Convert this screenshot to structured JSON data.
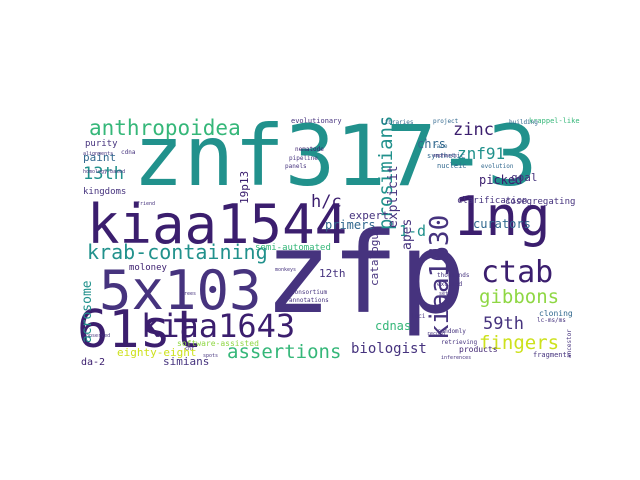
{
  "palette": {
    "dark_purple": "#3b1e6e",
    "indigo": "#46337e",
    "teal": "#21918c",
    "blue": "#31688e",
    "green": "#35b779",
    "lime": "#8fd744",
    "yellow": "#cde11d"
  },
  "words": [
    {
      "text": "zfp"
    },
    {
      "text": "znf317-3"
    },
    {
      "text": "kiaa1544"
    },
    {
      "text": "1ng"
    },
    {
      "text": "5x103"
    },
    {
      "text": "61st"
    },
    {
      "text": "kiaa1643"
    },
    {
      "text": "kiaa1630"
    },
    {
      "text": "ctab"
    },
    {
      "text": "krab-containing"
    },
    {
      "text": "anthropoidea"
    },
    {
      "text": "prosimians"
    },
    {
      "text": "assertions"
    },
    {
      "text": "gibbons"
    },
    {
      "text": "fingers"
    },
    {
      "text": "znf91"
    },
    {
      "text": "zinc"
    },
    {
      "text": "59th"
    },
    {
      "text": "13th"
    },
    {
      "text": "h/c"
    },
    {
      "text": "biologist"
    },
    {
      "text": "1-d"
    },
    {
      "text": "apes"
    },
    {
      "text": "explicit"
    },
    {
      "text": "acrosome"
    },
    {
      "text": "primers"
    },
    {
      "text": "curators"
    },
    {
      "text": "picked"
    },
    {
      "text": "chrs"
    },
    {
      "text": "cdnas"
    },
    {
      "text": "simians"
    },
    {
      "text": "expert"
    },
    {
      "text": "catalogue"
    },
    {
      "text": "goal"
    },
    {
      "text": "eighty-eight"
    },
    {
      "text": "paint"
    },
    {
      "text": "19p13"
    },
    {
      "text": "12th"
    },
    {
      "text": "da-2"
    },
    {
      "text": "semi-automated"
    },
    {
      "text": "purity"
    },
    {
      "text": "kingdoms"
    },
    {
      "text": "moloney"
    },
    {
      "text": "clarification"
    },
    {
      "text": "cosegregating"
    },
    {
      "text": "cloning"
    },
    {
      "text": "products"
    },
    {
      "text": "fragments"
    },
    {
      "text": "software-assisted"
    },
    {
      "text": "krappel-like"
    },
    {
      "text": "evolutionary"
    },
    {
      "text": "synthetic"
    },
    {
      "text": "nucleic"
    },
    {
      "text": "pipeline"
    },
    {
      "text": "panels"
    },
    {
      "text": "nematode"
    },
    {
      "text": "libraries"
    },
    {
      "text": "project"
    },
    {
      "text": "building"
    },
    {
      "text": "race"
    },
    {
      "text": "evolution"
    },
    {
      "text": "homology-based"
    },
    {
      "text": "cdna"
    },
    {
      "text": "consortium"
    },
    {
      "text": "annotations"
    },
    {
      "text": "randomly"
    },
    {
      "text": "retrieving"
    },
    {
      "text": "loci"
    },
    {
      "text": "excised"
    },
    {
      "text": "thousands"
    },
    {
      "text": "ancestor"
    },
    {
      "text": "spots"
    },
    {
      "text": "trees"
    },
    {
      "text": "monkeys"
    },
    {
      "text": "emphasis"
    },
    {
      "text": "record"
    },
    {
      "text": "friend"
    },
    {
      "text": "inferences"
    },
    {
      "text": "conserved"
    },
    {
      "text": "alignments"
    },
    {
      "text": "sets"
    },
    {
      "text": "lc-ms/ms"
    },
    {
      "text": "chr"
    }
  ]
}
